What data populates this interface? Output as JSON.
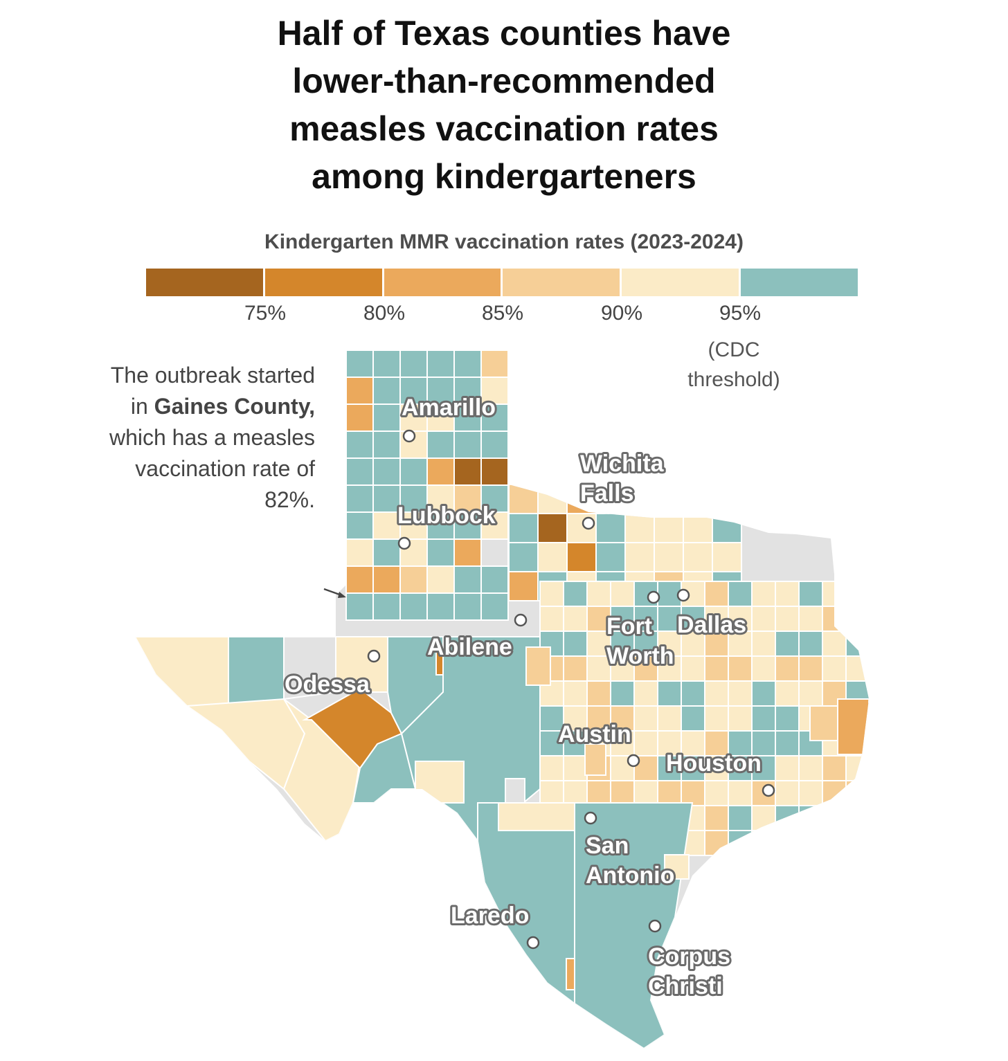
{
  "title": "Half of Texas counties have\nlower-than-recommended\nmeasles vaccination rates\namong kindergarteners",
  "legend": {
    "title": "Kindergarten MMR vaccination rates (2023-2024)",
    "bins": [
      {
        "label": "below 75%",
        "color": "#a5651f"
      },
      {
        "label": "75-80%",
        "color": "#d4862b"
      },
      {
        "label": "80-85%",
        "color": "#eba95c"
      },
      {
        "label": "85-90%",
        "color": "#f6cf97"
      },
      {
        "label": "90-95%",
        "color": "#fbebc7"
      },
      {
        "label": "95% and above",
        "color": "#8cc0bd"
      }
    ],
    "ticks": [
      "75%",
      "80%",
      "85%",
      "90%",
      "95%"
    ],
    "threshold_note": "(CDC\nthreshold)"
  },
  "annotation": {
    "pre": "The outbreak started in",
    "county": "Gaines County,",
    "post": "which has a measles vaccination rate of 82%."
  },
  "colors": {
    "no_data": "#e2e2e2",
    "county_border": "#ffffff",
    "city_marker": "#ffffff"
  },
  "cities": [
    {
      "name": "Amarillo"
    },
    {
      "name": "Wichita Falls",
      "lines": [
        "Wichita",
        "Falls"
      ]
    },
    {
      "name": "Lubbock"
    },
    {
      "name": "Fort Worth",
      "lines": [
        "Fort",
        "Worth"
      ]
    },
    {
      "name": "Dallas"
    },
    {
      "name": "Abilene"
    },
    {
      "name": "Odessa"
    },
    {
      "name": "Austin"
    },
    {
      "name": "Houston"
    },
    {
      "name": "San Antonio",
      "lines": [
        "San",
        "Antonio"
      ]
    },
    {
      "name": "Laredo"
    },
    {
      "name": "Corpus Christi",
      "lines": [
        "Corpus",
        "Christi"
      ]
    }
  ]
}
